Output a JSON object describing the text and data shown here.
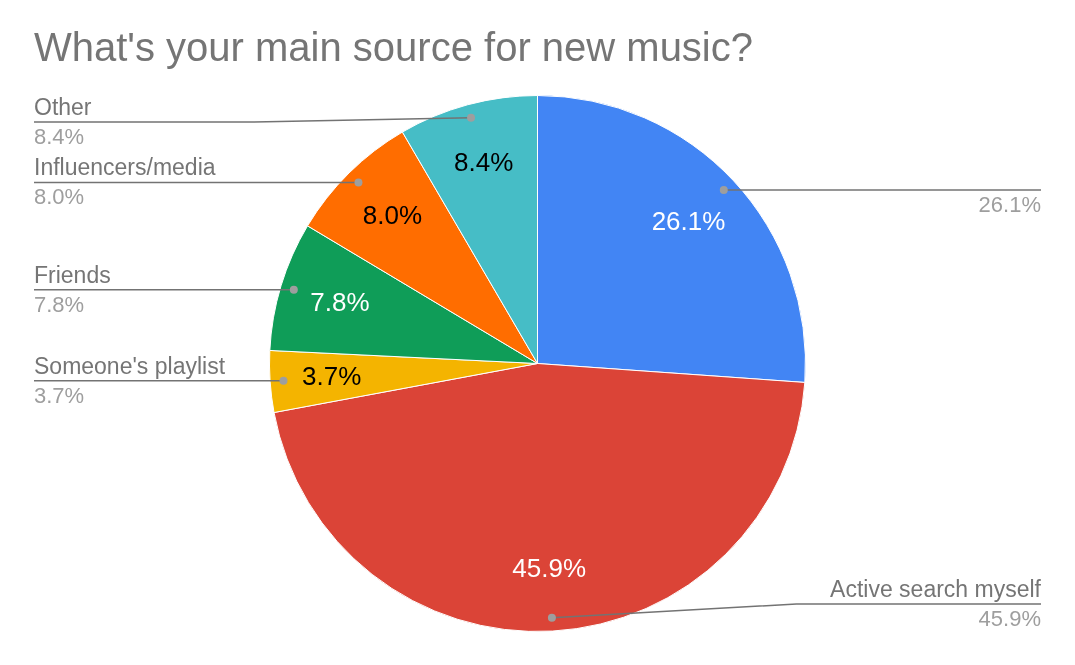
{
  "chart_data": {
    "type": "pie",
    "title": "What's your main source for new music?",
    "categories": [
      null,
      "Active search myself",
      "Someone's playlist",
      "Friends",
      "Influencers/media",
      "Other"
    ],
    "values": [
      26.1,
      45.9,
      3.7,
      7.8,
      8.0,
      8.4
    ],
    "colors": [
      "#4285f4",
      "#db4437",
      "#f4b400",
      "#0f9d58",
      "#ff6d00",
      "#46bdc6"
    ],
    "value_labels": [
      "26.1%",
      "45.9%",
      "3.7%",
      "7.8%",
      "8.0%",
      "8.4%"
    ]
  }
}
